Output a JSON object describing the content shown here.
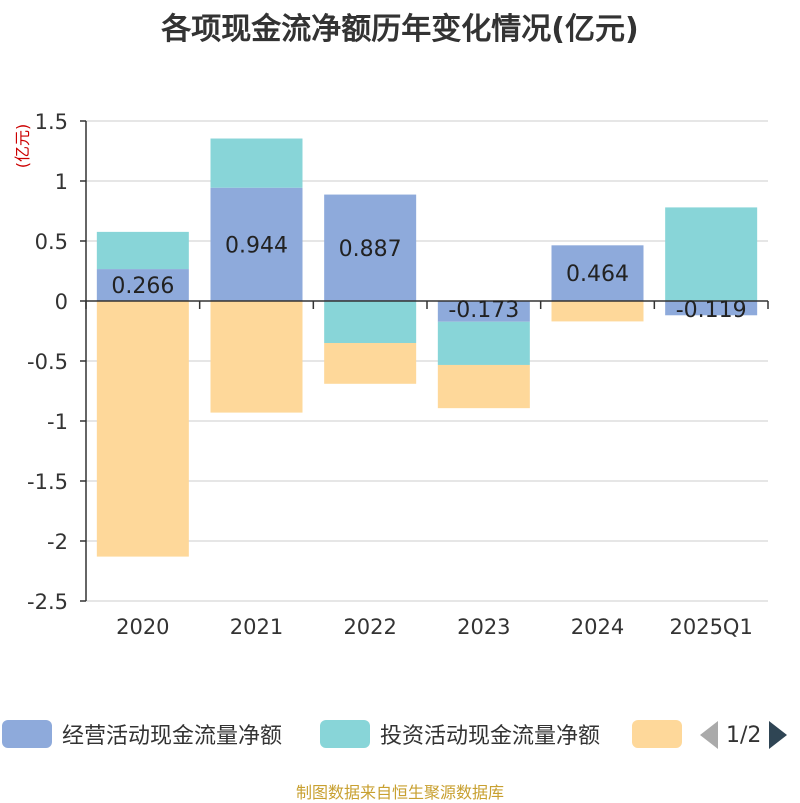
{
  "title": "各项现金流净额历年变化情况(亿元)",
  "source": "制图数据来自恒生聚源数据库",
  "pager": {
    "text": "1/2",
    "prev_icon": "triangle-left",
    "next_icon": "triangle-right"
  },
  "legend": [
    {
      "label": "经营活动现金流量净额",
      "color": "#8eaadb"
    },
    {
      "label": "投资活动现金流量净额",
      "color": "#88d5d8"
    },
    {
      "label": "",
      "color": "#fed89a"
    }
  ],
  "chart_data": {
    "type": "bar",
    "stacked": true,
    "title": "各项现金流净额历年变化情况(亿元)",
    "ylabel": "(亿元)",
    "ylim": [
      -2.5,
      1.5
    ],
    "yticks": [
      1.5,
      1,
      0.5,
      0,
      -0.5,
      -1,
      -1.5,
      -2,
      -2.5
    ],
    "ytick_labels": [
      "1.5",
      "1",
      "0.5",
      "0",
      "-0.5",
      "-1",
      "-1.5",
      "-2",
      "-2.5"
    ],
    "categories": [
      "2020",
      "2021",
      "2022",
      "2023",
      "2024",
      "2025Q1"
    ],
    "series": [
      {
        "name": "经营活动现金流量净额",
        "color": "#8eaadb",
        "values": [
          0.266,
          0.944,
          0.887,
          -0.173,
          0.464,
          -0.119
        ],
        "labels": [
          "0.266",
          "0.944",
          "0.887",
          "-0.173",
          "0.464",
          "-0.119"
        ]
      },
      {
        "name": "投资活动现金流量净额",
        "color": "#88d5d8",
        "values": [
          0.31,
          0.41,
          -0.35,
          -0.36,
          0.0,
          0.78
        ]
      },
      {
        "name": "",
        "color": "#fed89a",
        "values": [
          -2.13,
          -0.93,
          -0.34,
          -0.36,
          -0.17,
          0.0
        ]
      }
    ]
  }
}
